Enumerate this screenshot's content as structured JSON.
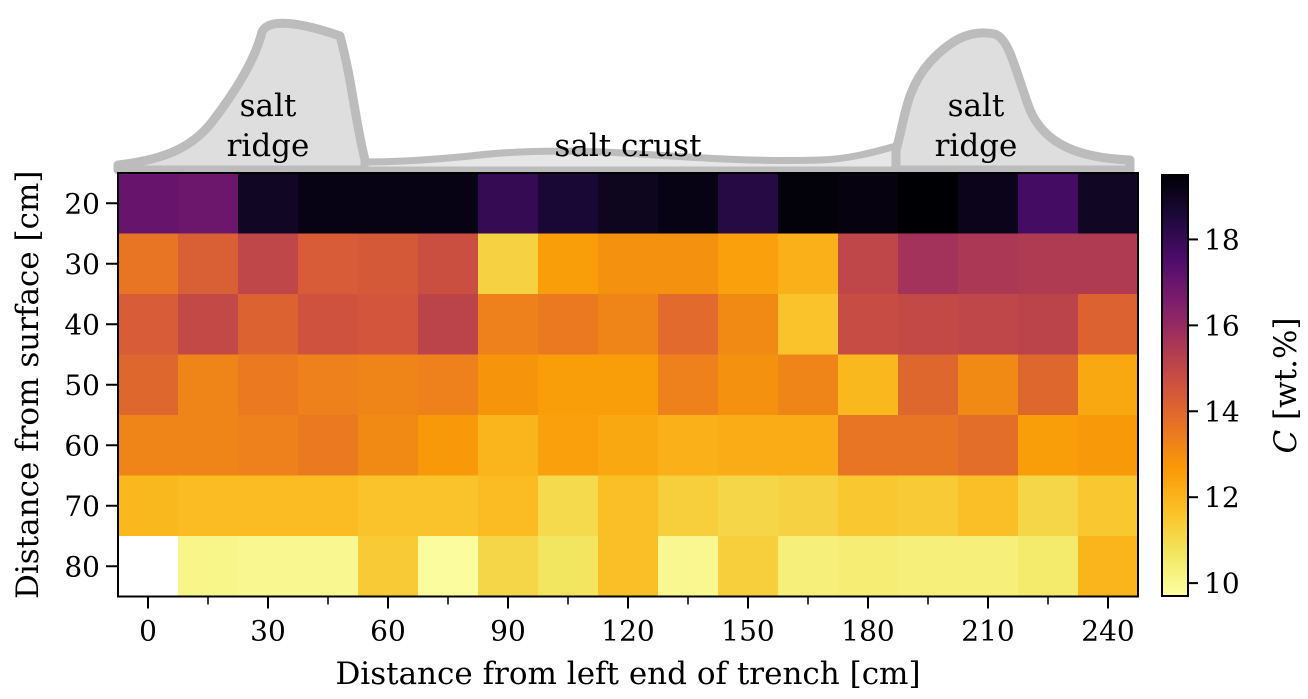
{
  "chart_data": {
    "type": "heatmap",
    "title": "",
    "xlabel": "Distance from left end of trench [cm]",
    "ylabel": "Distance from surface [cm]",
    "colorbar_label": "C [wt.%]",
    "colorbar_label_math": "C",
    "colorbar_label_unit": " [wt.%]",
    "colormap": "inferno_r",
    "vmin": 9.7,
    "vmax": 19.5,
    "x_centers": [
      0,
      15,
      30,
      45,
      60,
      75,
      90,
      105,
      120,
      135,
      150,
      165,
      180,
      195,
      210,
      225,
      240
    ],
    "x_tick_labels": [
      "0",
      "30",
      "60",
      "90",
      "120",
      "150",
      "180",
      "210",
      "240"
    ],
    "x_tick_values": [
      0,
      30,
      60,
      90,
      120,
      150,
      180,
      210,
      240
    ],
    "y_centers": [
      20,
      30,
      40,
      50,
      60,
      70,
      80
    ],
    "y_tick_labels": [
      "20",
      "30",
      "40",
      "50",
      "60",
      "70",
      "80"
    ],
    "colorbar_ticks": [
      10,
      12,
      14,
      16,
      18
    ],
    "colorbar_tick_labels": [
      "10",
      "12",
      "14",
      "16",
      "18"
    ],
    "values": [
      [
        17.0,
        16.9,
        18.9,
        19.2,
        19.2,
        19.2,
        18.0,
        18.6,
        19.0,
        19.2,
        18.3,
        19.4,
        19.3,
        19.5,
        19.1,
        17.7,
        18.9
      ],
      [
        13.6,
        14.2,
        15.0,
        14.3,
        14.4,
        14.7,
        11.2,
        12.6,
        12.9,
        12.9,
        12.5,
        12.1,
        15.0,
        15.7,
        15.5,
        15.4,
        15.4
      ],
      [
        14.3,
        14.9,
        14.1,
        14.6,
        14.5,
        15.1,
        13.3,
        13.5,
        13.2,
        13.9,
        13.1,
        11.6,
        14.8,
        14.9,
        15.0,
        15.1,
        14.1
      ],
      [
        14.0,
        13.2,
        13.5,
        13.3,
        13.2,
        13.3,
        12.8,
        12.6,
        12.6,
        13.3,
        12.9,
        13.2,
        11.9,
        14.0,
        13.1,
        14.0,
        12.3
      ],
      [
        13.2,
        13.2,
        13.3,
        13.5,
        13.1,
        12.7,
        12.0,
        12.5,
        12.3,
        12.1,
        12.2,
        12.2,
        13.6,
        13.6,
        13.8,
        12.6,
        12.7
      ],
      [
        11.9,
        11.8,
        11.8,
        11.8,
        11.6,
        11.6,
        11.8,
        11.0,
        11.7,
        11.3,
        11.1,
        11.2,
        11.5,
        11.4,
        11.7,
        11.1,
        11.5
      ],
      [
        null,
        10.1,
        10.0,
        10.0,
        11.4,
        9.8,
        11.1,
        10.7,
        11.7,
        10.0,
        11.3,
        10.3,
        10.4,
        10.3,
        10.3,
        10.5,
        12.0
      ]
    ],
    "annotations": [
      {
        "text_lines": [
          "salt",
          "ridge"
        ],
        "x": 30
      },
      {
        "text_lines": [
          "salt crust"
        ],
        "x": 120
      },
      {
        "text_lines": [
          "salt",
          "ridge"
        ],
        "x": 207
      }
    ],
    "grid": false,
    "legend": "colorbar-right"
  }
}
